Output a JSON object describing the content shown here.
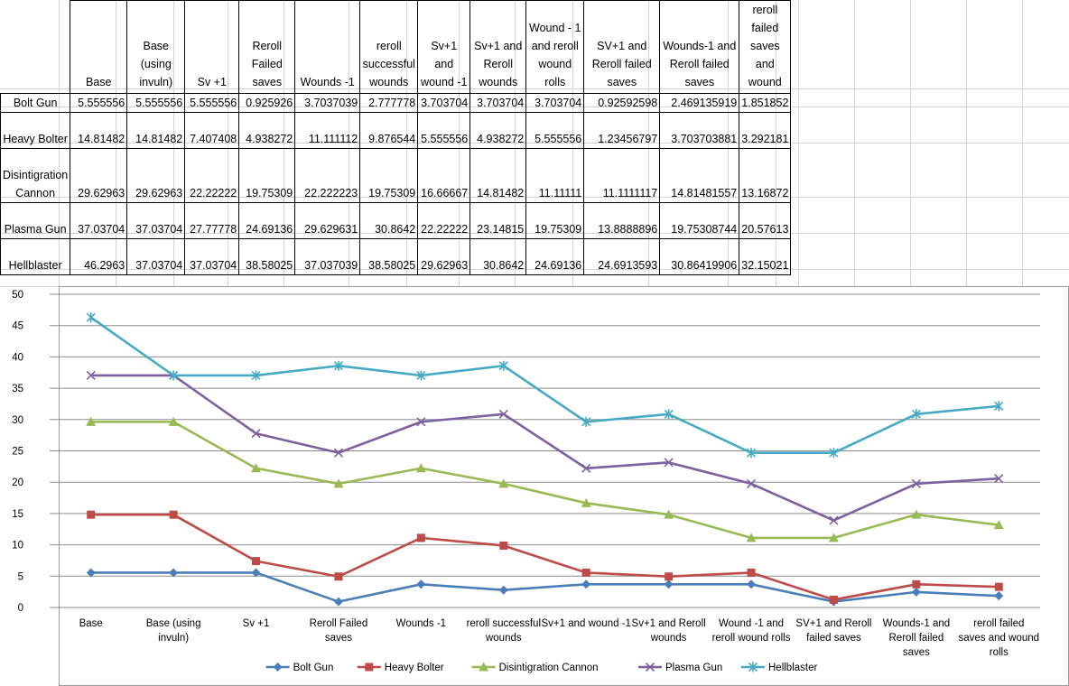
{
  "table": {
    "columns": [
      "Base",
      "Base (using invuln)",
      "Sv +1",
      "Reroll Failed saves",
      "Wounds -1",
      "reroll successful wounds",
      "Sv+1 and wound -1",
      "Sv+1 and Reroll wounds",
      "Wound - 1 and reroll wound rolls",
      "SV+1 and Reroll failed saves",
      "Wounds-1 and Reroll failed saves",
      "reroll failed saves and wound"
    ],
    "rows": [
      {
        "name": "Bolt Gun",
        "cells": [
          "5.555556",
          "5.555556",
          "5.555556",
          "0.925926",
          "3.7037039",
          "2.777778",
          "3.703704",
          "3.703704",
          "3.703704",
          "0.92592598",
          "2.469135919",
          "1.851852"
        ]
      },
      {
        "name": "Heavy Bolter",
        "cells": [
          "14.81482",
          "14.81482",
          "7.407408",
          "4.938272",
          "11.111112",
          "9.876544",
          "5.555556",
          "4.938272",
          "5.555556",
          "1.23456797",
          "3.703703881",
          "3.292181"
        ]
      },
      {
        "name": "Disintigration Cannon",
        "cells": [
          "29.62963",
          "29.62963",
          "22.22222",
          "19.75309",
          "22.222223",
          "19.75309",
          "16.66667",
          "14.81482",
          "11.11111",
          "11.1111117",
          "14.81481557",
          "13.16872"
        ]
      },
      {
        "name": "Plasma Gun",
        "cells": [
          "37.03704",
          "37.03704",
          "27.77778",
          "24.69136",
          "29.629631",
          "30.8642",
          "22.22222",
          "23.14815",
          "19.75309",
          "13.8888896",
          "19.75308744",
          "20.57613"
        ]
      },
      {
        "name": "Hellblaster",
        "cells": [
          "46.2963",
          "37.03704",
          "37.03704",
          "38.58025",
          "37.037039",
          "38.58025",
          "29.62963",
          "30.8642",
          "24.69136",
          "24.6913593",
          "30.86419906",
          "32.15021"
        ]
      }
    ]
  },
  "chart_data": {
    "type": "line",
    "categories": [
      "Base",
      "Base (using invuln)",
      "Sv +1",
      "Reroll Failed saves",
      "Wounds -1",
      "reroll successful wounds",
      "Sv+1 and wound -1",
      "Sv+1 and Reroll wounds",
      "Wound -1 and reroll wound rolls",
      "SV+1 and Reroll failed saves",
      "Wounds-1 and Reroll failed saves",
      "reroll failed saves and wound rolls"
    ],
    "series": [
      {
        "name": "Bolt Gun",
        "color": "#4a7ebb",
        "marker": "diamond",
        "values": [
          5.555556,
          5.555556,
          5.555556,
          0.925926,
          3.7037039,
          2.777778,
          3.703704,
          3.703704,
          3.703704,
          0.92592598,
          2.469135919,
          1.851852
        ]
      },
      {
        "name": "Heavy Bolter",
        "color": "#be4b48",
        "marker": "square",
        "values": [
          14.81482,
          14.81482,
          7.407408,
          4.938272,
          11.111112,
          9.876544,
          5.555556,
          4.938272,
          5.555556,
          1.23456797,
          3.703703881,
          3.292181
        ]
      },
      {
        "name": "Disintigration Cannon",
        "color": "#98b954",
        "marker": "triangle",
        "values": [
          29.62963,
          29.62963,
          22.22222,
          19.75309,
          22.222223,
          19.75309,
          16.66667,
          14.81482,
          11.11111,
          11.1111117,
          14.81481557,
          13.16872
        ]
      },
      {
        "name": "Plasma Gun",
        "color": "#7d60a0",
        "marker": "x",
        "values": [
          37.03704,
          37.03704,
          27.77778,
          24.69136,
          29.629631,
          30.8642,
          22.22222,
          23.14815,
          19.75309,
          13.8888896,
          19.75308744,
          20.57613
        ]
      },
      {
        "name": "Hellblaster",
        "color": "#46aac5",
        "marker": "star",
        "values": [
          46.2963,
          37.03704,
          37.03704,
          38.58025,
          37.037039,
          38.58025,
          29.62963,
          30.8642,
          24.69136,
          24.6913593,
          30.86419906,
          32.15021
        ]
      }
    ],
    "yticks": [
      "0",
      "5",
      "10",
      "15",
      "20",
      "25",
      "30",
      "35",
      "40",
      "45",
      "50"
    ],
    "ylim": [
      0,
      50
    ],
    "grid": true,
    "legend": "bottom"
  }
}
